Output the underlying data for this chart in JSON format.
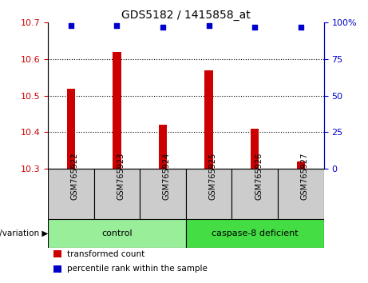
{
  "title": "GDS5182 / 1415858_at",
  "samples": [
    "GSM765922",
    "GSM765923",
    "GSM765924",
    "GSM765925",
    "GSM765926",
    "GSM765927"
  ],
  "bar_values": [
    10.52,
    10.62,
    10.42,
    10.57,
    10.41,
    10.32
  ],
  "percentile_values": [
    98,
    98,
    97,
    98,
    97,
    97
  ],
  "bar_color": "#cc0000",
  "dot_color": "#0000cc",
  "ylim_left": [
    10.3,
    10.7
  ],
  "ylim_right": [
    0,
    100
  ],
  "yticks_left": [
    10.3,
    10.4,
    10.5,
    10.6,
    10.7
  ],
  "yticks_right": [
    0,
    25,
    50,
    75,
    100
  ],
  "ytick_labels_right": [
    "0",
    "25",
    "50",
    "75",
    "100%"
  ],
  "left_tick_color": "#cc0000",
  "right_tick_color": "#0000cc",
  "groups": [
    {
      "label": "control",
      "span": [
        0,
        2
      ],
      "color": "#99ee99"
    },
    {
      "label": "caspase-8 deficient",
      "span": [
        3,
        5
      ],
      "color": "#44dd44"
    }
  ],
  "group_label": "genotype/variation",
  "legend_items": [
    {
      "color": "#cc0000",
      "label": "transformed count"
    },
    {
      "color": "#0000cc",
      "label": "percentile rank within the sample"
    }
  ],
  "bar_width": 0.18,
  "grid_color": "#000000",
  "bg_color": "#ffffff",
  "xtick_bg": "#cccccc",
  "bar_bottom": 10.3
}
